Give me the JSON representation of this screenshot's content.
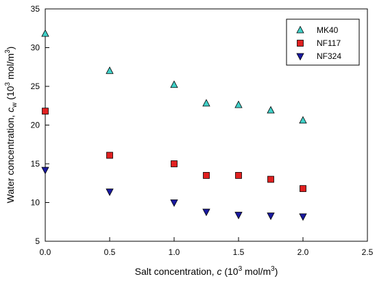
{
  "chart_data": {
    "type": "scatter",
    "xlabel": {
      "main": "Salt concentration, ",
      "var": "c",
      "pre": " (10",
      "sup": "3",
      "post": " mol/m",
      "sup2": "3",
      "end": ")"
    },
    "ylabel": {
      "main": "Water concentration, ",
      "var": "c",
      "sub": "w",
      "pre": " (10",
      "sup": "3",
      "post": " mol/m",
      "sup2": "3",
      "end": ")"
    },
    "xlim": [
      0.0,
      2.5
    ],
    "ylim": [
      5,
      35
    ],
    "xticks": [
      "0.0",
      "0.5",
      "1.0",
      "1.5",
      "2.0",
      "2.5"
    ],
    "yticks": [
      "5",
      "10",
      "15",
      "20",
      "25",
      "30",
      "35"
    ],
    "grid": false,
    "legend_position": "top-right",
    "series": [
      {
        "name": "MK40",
        "marker": "triangle-up",
        "color": "#40d0c8",
        "x": [
          0.0,
          0.5,
          1.0,
          1.25,
          1.5,
          1.75,
          2.0
        ],
        "y": [
          31.8,
          27.0,
          25.2,
          22.8,
          22.6,
          21.9,
          20.6
        ]
      },
      {
        "name": "NF117",
        "marker": "square",
        "color": "#e02020",
        "x": [
          0.0,
          0.5,
          1.0,
          1.25,
          1.5,
          1.75,
          2.0
        ],
        "y": [
          21.8,
          16.1,
          15.0,
          13.5,
          13.5,
          13.0,
          11.8
        ]
      },
      {
        "name": "NF324",
        "marker": "triangle-down",
        "color": "#1a1aa0",
        "x": [
          0.0,
          0.5,
          1.0,
          1.25,
          1.5,
          1.75,
          2.0
        ],
        "y": [
          14.2,
          11.4,
          10.0,
          8.8,
          8.4,
          8.3,
          8.2
        ]
      }
    ]
  }
}
